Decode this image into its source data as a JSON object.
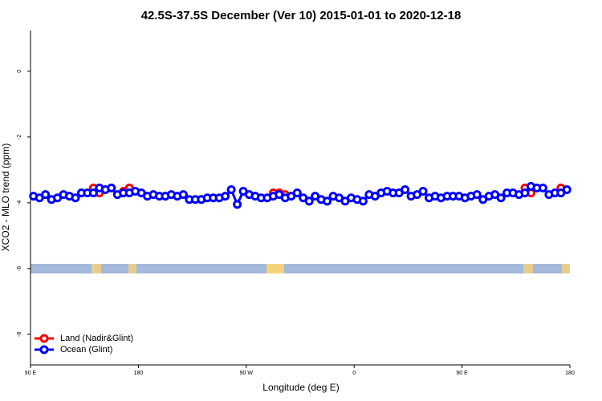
{
  "chart_data": {
    "type": "line",
    "title": "42.5S-37.5S December (Ver 10)   2015-01-01 to 2020-12-18",
    "xlabel": "Longitude (deg E)",
    "ylabel": "XCO2 - MLO trend (ppm)",
    "x": [
      92.5,
      97.5,
      102.5,
      107.5,
      112.5,
      117.5,
      122.5,
      127.5,
      132.5,
      137.5,
      142.5,
      147.5,
      152.5,
      157.5,
      162.5,
      167.5,
      172.5,
      177.5,
      182.5,
      187.5,
      192.5,
      197.5,
      202.5,
      207.5,
      212.5,
      217.5,
      222.5,
      227.5,
      232.5,
      237.5,
      242.5,
      247.5,
      252.5,
      257.5,
      262.5,
      267.5,
      272.5,
      277.5,
      282.5,
      287.5,
      292.5,
      297.5,
      302.5,
      307.5,
      312.5,
      317.5,
      322.5,
      327.5,
      332.5,
      337.5,
      342.5,
      347.5,
      352.5,
      357.5,
      362.5,
      367.5,
      372.5,
      377.5,
      382.5,
      387.5,
      392.5,
      397.5,
      402.5,
      407.5,
      412.5,
      417.5,
      422.5,
      427.5,
      432.5,
      437.5,
      442.5,
      447.5,
      452.5,
      457.5,
      462.5,
      467.5,
      472.5,
      477.5,
      482.5,
      487.5,
      492.5,
      497.5,
      502.5,
      507.5,
      512.5,
      517.5,
      522.5,
      527.5,
      532.5,
      537.5
    ],
    "series": [
      {
        "name": "Land (Nadir&Glint)",
        "color": "#ff0000",
        "values": [
          null,
          null,
          null,
          null,
          null,
          null,
          null,
          null,
          null,
          null,
          -3.55,
          -3.7,
          null,
          null,
          null,
          -3.65,
          -3.55,
          null,
          null,
          null,
          null,
          null,
          null,
          null,
          null,
          null,
          null,
          null,
          null,
          null,
          null,
          null,
          null,
          null,
          null,
          null,
          null,
          null,
          null,
          null,
          -3.7,
          -3.7,
          -3.75,
          null,
          null,
          null,
          null,
          null,
          null,
          null,
          null,
          null,
          null,
          null,
          null,
          null,
          null,
          null,
          null,
          null,
          null,
          null,
          null,
          null,
          null,
          null,
          null,
          null,
          null,
          null,
          null,
          null,
          null,
          null,
          null,
          null,
          null,
          null,
          null,
          null,
          null,
          null,
          -3.55,
          -3.7,
          null,
          null,
          null,
          null,
          -3.55,
          null
        ]
      },
      {
        "name": "Ocean (Glint)",
        "color": "#0000ff",
        "values": [
          -3.8,
          -3.85,
          -3.75,
          -3.9,
          -3.85,
          -3.75,
          -3.8,
          -3.85,
          -3.7,
          -3.7,
          -3.7,
          -3.55,
          -3.6,
          -3.55,
          -3.75,
          -3.7,
          -3.7,
          -3.65,
          -3.7,
          -3.8,
          -3.75,
          -3.8,
          -3.8,
          -3.75,
          -3.8,
          -3.75,
          -3.9,
          -3.9,
          -3.9,
          -3.85,
          -3.85,
          -3.85,
          -3.8,
          -3.6,
          -4.05,
          -3.65,
          -3.75,
          -3.8,
          -3.85,
          -3.85,
          -3.8,
          -3.75,
          -3.85,
          -3.8,
          -3.7,
          -3.85,
          -3.95,
          -3.8,
          -3.9,
          -3.95,
          -3.8,
          -3.85,
          -3.95,
          -3.85,
          -3.9,
          -3.95,
          -3.75,
          -3.8,
          -3.7,
          -3.65,
          -3.7,
          -3.7,
          -3.6,
          -3.8,
          -3.75,
          -3.65,
          -3.85,
          -3.8,
          -3.85,
          -3.8,
          -3.8,
          -3.8,
          -3.85,
          -3.8,
          -3.75,
          -3.9,
          -3.8,
          -3.75,
          -3.85,
          -3.7,
          -3.7,
          -3.75,
          -3.7,
          -3.5,
          -3.55,
          -3.55,
          -3.75,
          -3.7,
          -3.7,
          -3.6
        ]
      }
    ],
    "xlim": [
      90,
      540
    ],
    "xticks": [
      {
        "value": 90,
        "label": "90 E"
      },
      180,
      {
        "value": 270,
        "label": "90 W"
      },
      0,
      {
        "value": 450,
        "label": "90 E"
      },
      180
    ],
    "ylim": [
      -8.93,
      1.24
    ],
    "yticks": [
      0,
      -2,
      -4,
      -6,
      -8
    ],
    "legend": "lower left"
  }
}
